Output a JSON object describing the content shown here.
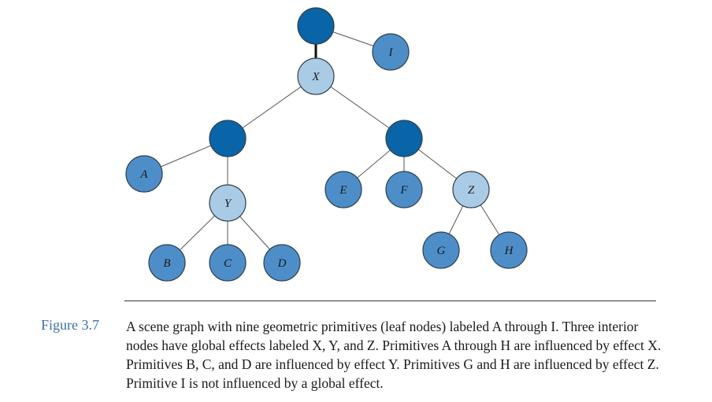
{
  "figure": {
    "number": "Figure 3.7",
    "caption": "A scene graph with nine geometric primitives (leaf nodes) labeled A through I. Three interior nodes have global effects labeled X, Y, and Z. Primitives A through H are influenced by effect X. Primitives B, C, and D are influenced by effect Y. Primitives G and H are influenced by effect Z. Primitive I is not influenced by a global effect."
  },
  "colors": {
    "interior": "#0a64a8",
    "leaf": "#4d8ec9",
    "effect": "#a9cbe6",
    "stroke": "#2f3e4c",
    "edge": "#555555"
  },
  "graph": {
    "nodes": [
      {
        "id": "root",
        "kind": "interior",
        "label": ""
      },
      {
        "id": "I",
        "kind": "leaf",
        "label": "I"
      },
      {
        "id": "X",
        "kind": "effect",
        "label": "X"
      },
      {
        "id": "n1",
        "kind": "interior",
        "label": ""
      },
      {
        "id": "n2",
        "kind": "interior",
        "label": ""
      },
      {
        "id": "A",
        "kind": "leaf",
        "label": "A"
      },
      {
        "id": "Y",
        "kind": "effect",
        "label": "Y"
      },
      {
        "id": "B",
        "kind": "leaf",
        "label": "B"
      },
      {
        "id": "C",
        "kind": "leaf",
        "label": "C"
      },
      {
        "id": "D",
        "kind": "leaf",
        "label": "D"
      },
      {
        "id": "E",
        "kind": "leaf",
        "label": "E"
      },
      {
        "id": "F",
        "kind": "leaf",
        "label": "F"
      },
      {
        "id": "Z",
        "kind": "effect",
        "label": "Z"
      },
      {
        "id": "G",
        "kind": "leaf",
        "label": "G"
      },
      {
        "id": "H",
        "kind": "leaf",
        "label": "H"
      }
    ],
    "edges": [
      [
        "root",
        "X"
      ],
      [
        "root",
        "I"
      ],
      [
        "X",
        "n1"
      ],
      [
        "X",
        "n2"
      ],
      [
        "n1",
        "A"
      ],
      [
        "n1",
        "Y"
      ],
      [
        "Y",
        "B"
      ],
      [
        "Y",
        "C"
      ],
      [
        "Y",
        "D"
      ],
      [
        "n2",
        "E"
      ],
      [
        "n2",
        "F"
      ],
      [
        "n2",
        "Z"
      ],
      [
        "Z",
        "G"
      ],
      [
        "Z",
        "H"
      ]
    ]
  }
}
